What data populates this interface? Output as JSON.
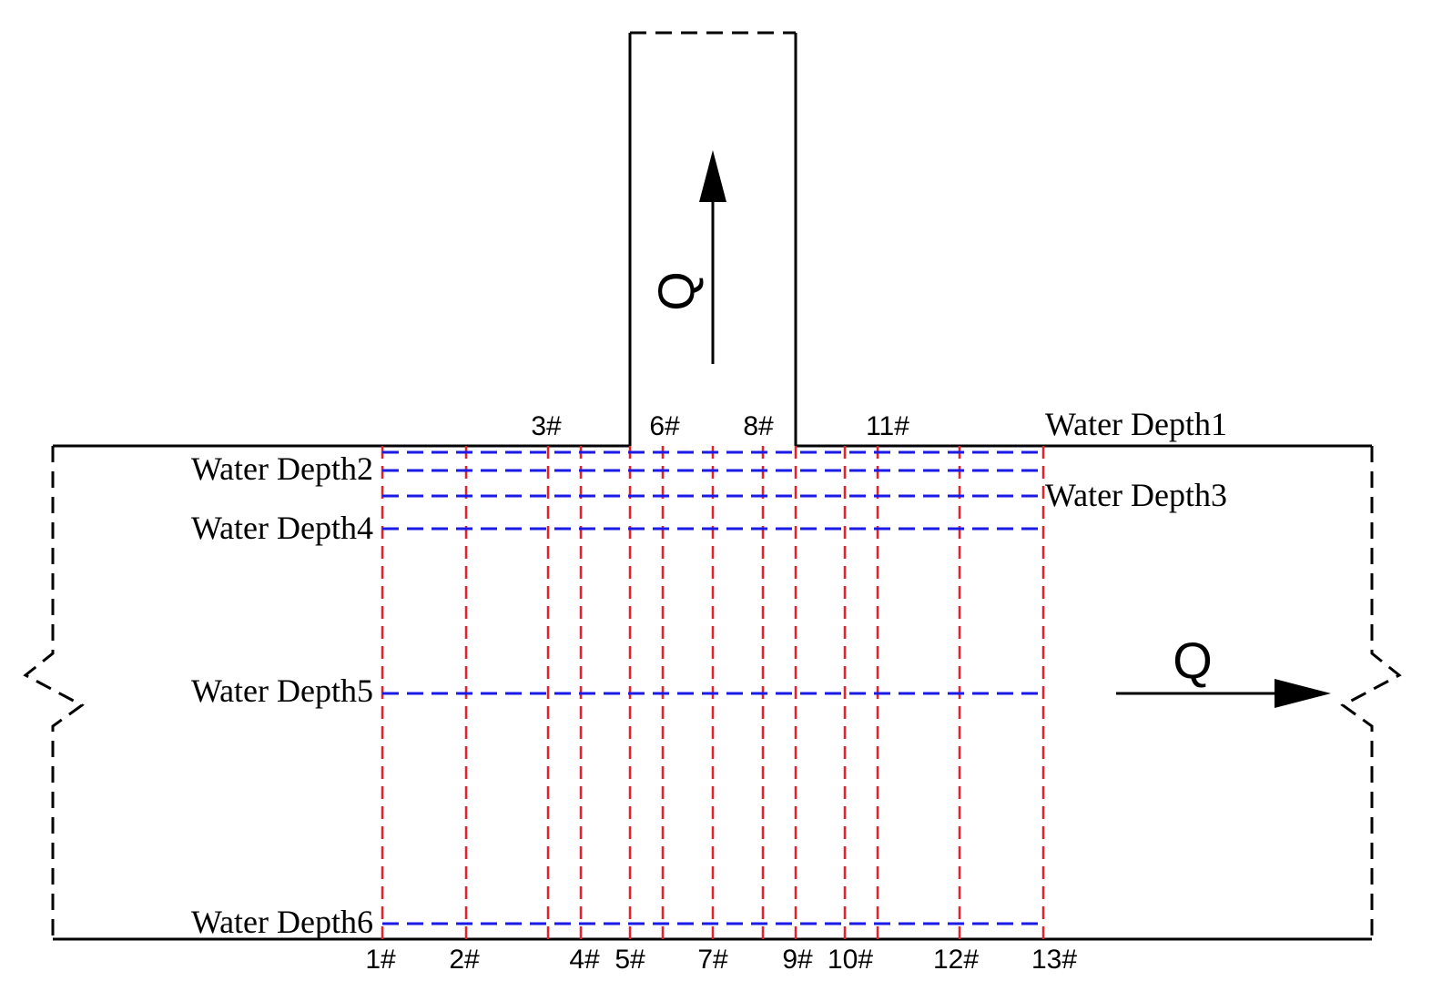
{
  "sections": [
    "1#",
    "2#",
    "3#",
    "4#",
    "5#",
    "6#",
    "7#",
    "8#",
    "9#",
    "10#",
    "11#",
    "12#",
    "13#"
  ],
  "water_depths": [
    "Water Depth1",
    "Water Depth2",
    "Water Depth3",
    "Water Depth4",
    "Water Depth5",
    "Water Depth6"
  ],
  "flow_labels": [
    "Q",
    "Q"
  ]
}
